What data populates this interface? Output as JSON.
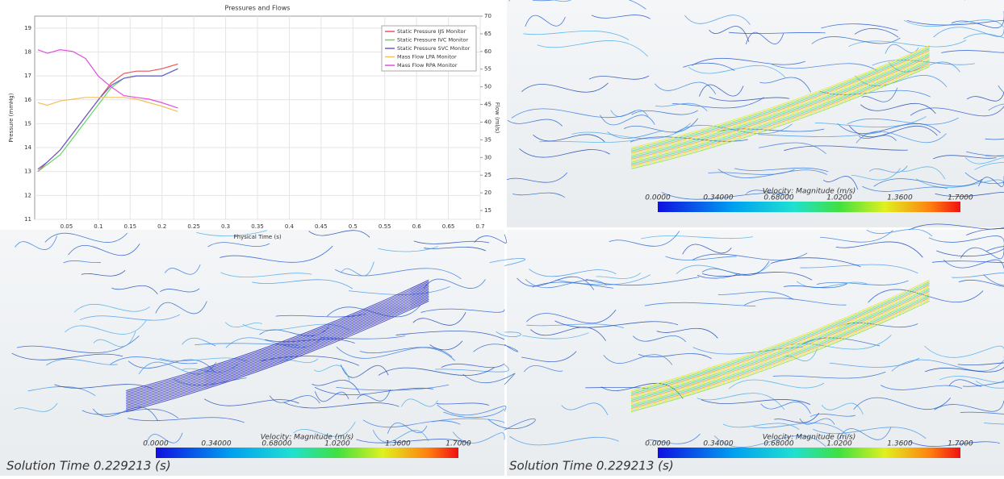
{
  "chart_data": {
    "type": "line",
    "title": "Pressures and Flows",
    "x_label": "Physical Time (s)",
    "y_label": "Pressure (mmHg)",
    "y2_label": "Flow (ml/s)",
    "x": [
      0.005,
      0.02,
      0.04,
      0.06,
      0.08,
      0.1,
      0.12,
      0.14,
      0.16,
      0.18,
      0.2,
      0.225
    ],
    "xlim": [
      0,
      0.7
    ],
    "xticks": [
      0.05,
      0.1,
      0.15,
      0.2,
      0.25,
      0.3,
      0.35,
      0.4,
      0.45,
      0.5,
      0.55,
      0.6,
      0.65,
      0.7
    ],
    "ylim": [
      11,
      19.5
    ],
    "yticks": [
      11,
      12,
      13,
      14,
      15,
      16,
      17,
      18,
      19
    ],
    "y2lim": [
      12.5,
      70
    ],
    "y2ticks": [
      15,
      20,
      25,
      30,
      35,
      40,
      45,
      50,
      55,
      60,
      65,
      70
    ],
    "grid": true,
    "legend": "upper right",
    "series": [
      {
        "name": "Static Pressure IJS Monitor",
        "color": "#e8545a",
        "values": [
          13.0,
          13.4,
          13.9,
          14.6,
          15.3,
          16.0,
          16.7,
          17.1,
          17.2,
          17.2,
          17.3,
          17.5
        ]
      },
      {
        "name": "Static Pressure IVC Monitor",
        "color": "#5ed85e",
        "values": [
          13.0,
          13.3,
          13.7,
          14.4,
          15.1,
          15.8,
          16.5,
          16.9,
          17.0,
          17.0,
          17.0,
          17.3
        ]
      },
      {
        "name": "Static Pressure SVC Monitor",
        "color": "#6a5ad8",
        "values": [
          13.1,
          13.4,
          13.9,
          14.6,
          15.3,
          16.0,
          16.6,
          16.9,
          17.0,
          17.0,
          17.0,
          17.3
        ]
      },
      {
        "name": "Mass Flow LPA Monitor",
        "color": "#f2c060",
        "axis": "y2",
        "values": [
          45.5,
          44.8,
          46,
          46.5,
          47,
          47,
          47,
          47,
          46.5,
          45.5,
          44.5,
          43
        ]
      },
      {
        "name": "Mass Flow RPA Monitor",
        "color": "#e04fe0",
        "axis": "y2",
        "values": [
          60.5,
          59.5,
          60.5,
          60,
          58,
          53,
          50,
          47.5,
          47,
          46.5,
          45.5,
          44
        ]
      }
    ]
  },
  "panels": [
    {
      "colorbar_title": "Velocity: Magnitude (m/s)",
      "colorbar_labels": [
        "0.0000",
        "0.34000",
        "0.68000",
        "1.0200",
        "1.3600",
        "1.7000"
      ]
    },
    {
      "colorbar_title": "Velocity: Magnitude (m/s)",
      "colorbar_labels": [
        "0.0000",
        "0.34000",
        "0.68000",
        "1.0200",
        "1.3600",
        "1.7000"
      ],
      "solution_time": "Solution Time 0.229213 (s)"
    },
    {
      "colorbar_title": "Velocity: Magnitude (m/s)",
      "colorbar_labels": [
        "0.0000",
        "0.34000",
        "0.68000",
        "1.0200",
        "1.3600",
        "1.7000"
      ],
      "solution_time": "Solution Time 0.229213 (s)"
    }
  ]
}
